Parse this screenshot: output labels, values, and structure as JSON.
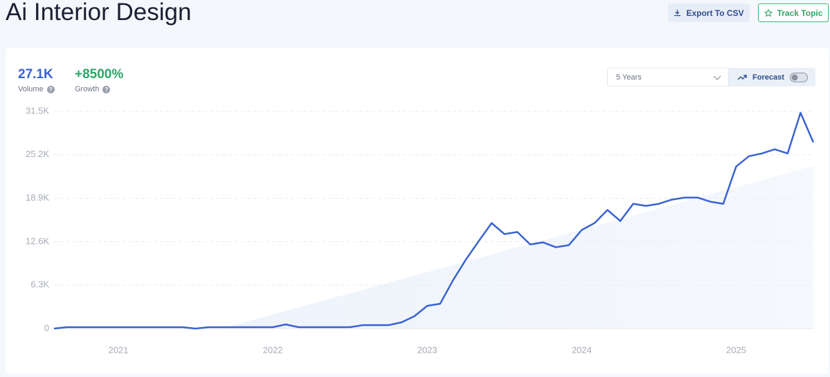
{
  "header": {
    "title": "Ai Interior Design",
    "export": "Export To CSV",
    "track": "Track Topic"
  },
  "stats": {
    "volume": "27.1K",
    "volume_label": "Volume",
    "growth": "+8500%",
    "growth_label": "Growth"
  },
  "controls": {
    "range": "5 Years",
    "forecast": "Forecast"
  },
  "chart_data": {
    "type": "line",
    "color": "#3862d1",
    "grid": true,
    "categories": [
      null,
      null,
      null,
      null,
      null,
      "2021",
      null,
      null,
      null,
      null,
      null,
      null,
      null,
      null,
      null,
      null,
      null,
      "2022",
      null,
      null,
      null,
      null,
      null,
      null,
      null,
      null,
      null,
      null,
      null,
      "2023",
      null,
      null,
      null,
      null,
      null,
      null,
      null,
      null,
      null,
      null,
      null,
      "2024",
      null,
      null,
      null,
      null,
      null,
      null,
      null,
      null,
      null,
      null,
      null,
      "2025",
      null,
      null,
      null,
      null,
      null,
      null
    ],
    "values": [
      0,
      200,
      200,
      200,
      200,
      200,
      200,
      200,
      200,
      200,
      200,
      0,
      200,
      200,
      200,
      200,
      200,
      200,
      600,
      200,
      200,
      200,
      200,
      200,
      500,
      500,
      500,
      900,
      1800,
      3300,
      3600,
      7000,
      10000,
      12700,
      15300,
      13700,
      14000,
      12200,
      12500,
      11800,
      12100,
      14300,
      15300,
      17200,
      15600,
      18100,
      17800,
      18100,
      18700,
      19000,
      19000,
      18400,
      18100,
      23500,
      25000,
      25400,
      26000,
      25400,
      31300,
      27000
    ],
    "ylim": [
      0,
      31500
    ],
    "yticks": [
      0,
      {
        "value": 6300,
        "label": "6.3K"
      },
      {
        "value": 12600,
        "label": "12.6K"
      },
      {
        "value": 18900,
        "label": "18.9K"
      },
      {
        "value": 25200,
        "label": "25.2K"
      },
      {
        "value": 31500,
        "label": "31.5K"
      }
    ]
  }
}
